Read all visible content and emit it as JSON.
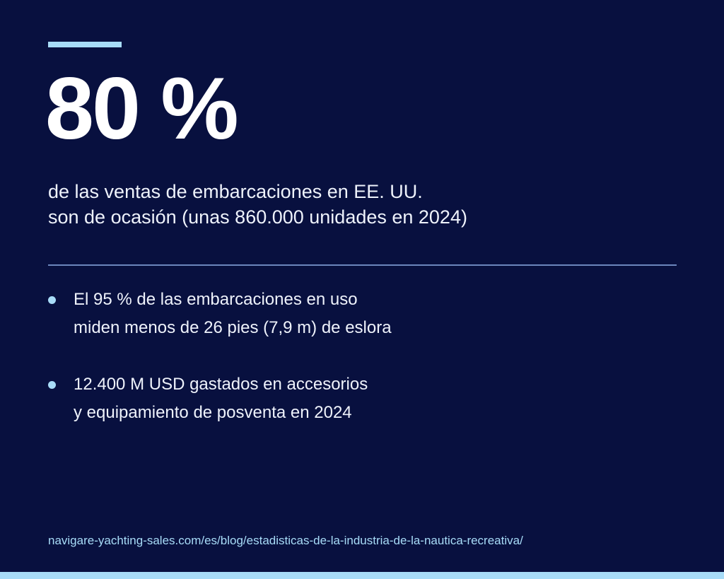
{
  "stat": {
    "value": "80 %",
    "description_line1": "de las ventas de embarcaciones en EE. UU.",
    "description_line2": "son de ocasión (unas 860.000 unidades en 2024)"
  },
  "bullets": [
    {
      "line1": "El 95 % de las embarcaciones en uso",
      "line2": "miden menos de 26 pies (7,9 m) de eslora"
    },
    {
      "line1": "12.400 M USD gastados en accesorios",
      "line2": "y equipamiento de posventa en 2024"
    }
  ],
  "source": "navigare-yachting-sales.com/es/blog/estadisticas-de-la-industria-de-la-nautica-recreativa/",
  "colors": {
    "background": "#08103f",
    "accent": "#a8dcf8",
    "divider": "#6c87bd",
    "text": "#ffffff"
  }
}
